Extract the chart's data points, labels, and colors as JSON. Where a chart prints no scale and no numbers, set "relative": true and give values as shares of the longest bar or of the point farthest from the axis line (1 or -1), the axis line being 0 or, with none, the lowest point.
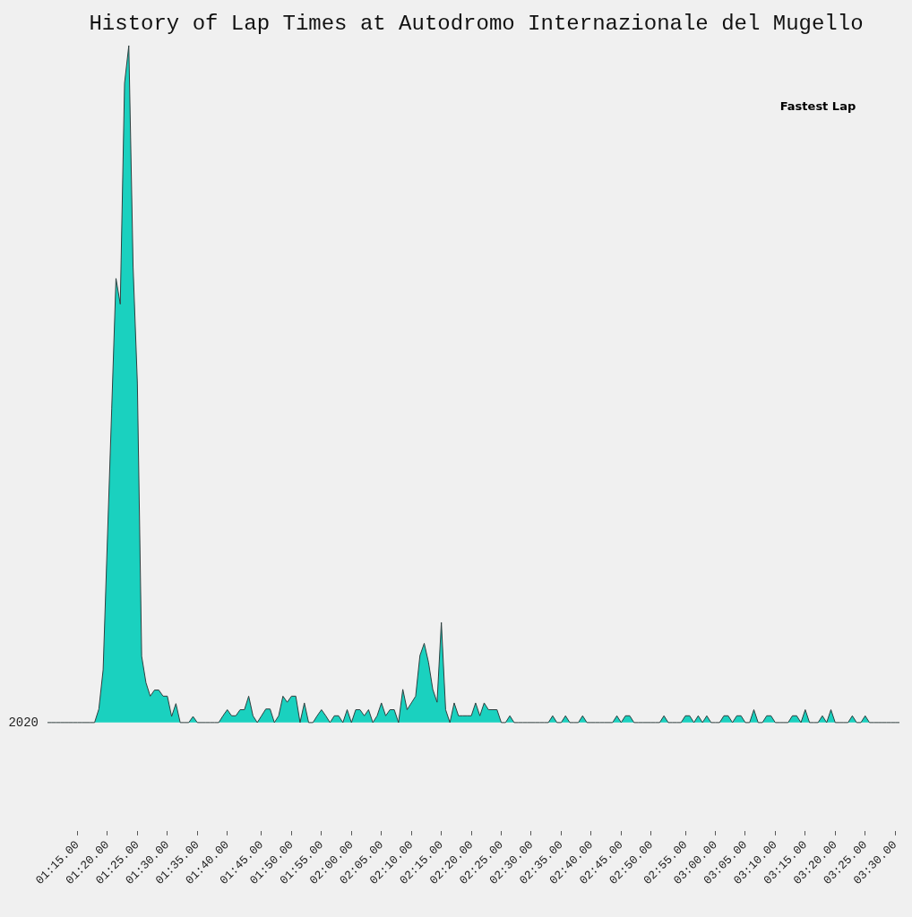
{
  "chart_data": {
    "type": "area",
    "title": "History of Lap Times at Autodromo Internazionale del Mugello",
    "relative": true,
    "legend_title": "Fastest Lap",
    "categories": [
      null,
      null,
      null,
      null,
      null,
      null,
      null,
      "01:15.00",
      null,
      null,
      null,
      null,
      null,
      null,
      "01:20.00",
      null,
      null,
      null,
      null,
      null,
      null,
      "01:25.00",
      null,
      null,
      null,
      null,
      null,
      null,
      "01:30.00",
      null,
      null,
      null,
      null,
      null,
      null,
      "01:35.00",
      null,
      null,
      null,
      null,
      null,
      null,
      "01:40.00",
      null,
      null,
      null,
      null,
      null,
      null,
      null,
      "01:45.00",
      null,
      null,
      null,
      null,
      null,
      null,
      "01:50.00",
      null,
      null,
      null,
      null,
      null,
      null,
      "01:55.00",
      null,
      null,
      null,
      null,
      null,
      null,
      "02:00.00",
      null,
      null,
      null,
      null,
      null,
      null,
      "02:05.00",
      null,
      null,
      null,
      null,
      null,
      null,
      "02:10.00",
      null,
      null,
      null,
      null,
      null,
      null,
      "02:15.00",
      null,
      null,
      null,
      null,
      null,
      null,
      "02:20.00",
      null,
      null,
      null,
      null,
      null,
      null,
      "02:25.00",
      null,
      null,
      null,
      null,
      null,
      null,
      "02:30.00",
      null,
      null,
      null,
      null,
      null,
      null,
      "02:35.00",
      null,
      null,
      null,
      null,
      null,
      null,
      "02:40.00",
      null,
      null,
      null,
      null,
      null,
      null,
      "02:45.00",
      null,
      null,
      null,
      null,
      null,
      null,
      "02:50.00",
      null,
      null,
      null,
      null,
      null,
      null,
      null,
      "02:55.00",
      null,
      null,
      null,
      null,
      null,
      null,
      "03:00.00",
      null,
      null,
      null,
      null,
      null,
      null,
      "03:05.00",
      null,
      null,
      null,
      null,
      null,
      null,
      "03:10.00",
      null,
      null,
      null,
      null,
      null,
      null,
      "03:15.00",
      null,
      null,
      null,
      null,
      null,
      null,
      "03:20.00",
      null,
      null,
      null,
      null,
      null,
      null,
      "03:25.00",
      null,
      null,
      null,
      null,
      null,
      null,
      "03:30.00",
      null
    ],
    "series": [
      {
        "name": "2020",
        "color": "#1ad1bf",
        "values": [
          0,
          0,
          0,
          0,
          0,
          0,
          0,
          0,
          0,
          0,
          0,
          0,
          0.02,
          0.078,
          0.271,
          0.463,
          0.656,
          0.618,
          0.944,
          1,
          0.673,
          0.501,
          0.098,
          0.059,
          0.039,
          0.048,
          0.048,
          0.039,
          0.039,
          0.009,
          0.028,
          0,
          0,
          0,
          0.009,
          0,
          0,
          0,
          0,
          0,
          0,
          0.01,
          0.019,
          0.01,
          0.01,
          0.019,
          0.019,
          0.039,
          0.01,
          0,
          0.01,
          0.02,
          0.02,
          0,
          0.01,
          0.039,
          0.03,
          0.039,
          0.039,
          0,
          0.029,
          0,
          0,
          0.01,
          0.019,
          0.01,
          0,
          0.01,
          0.01,
          0,
          0.019,
          0,
          0.019,
          0.019,
          0.01,
          0.019,
          0,
          0.01,
          0.029,
          0.01,
          0.019,
          0.019,
          0,
          0.049,
          0.019,
          0.029,
          0.039,
          0.099,
          0.117,
          0.089,
          0.049,
          0.03,
          0.148,
          0.019,
          0,
          0.029,
          0.01,
          0.01,
          0.01,
          0.01,
          0.029,
          0.01,
          0.029,
          0.019,
          0.019,
          0.019,
          0,
          0,
          0.01,
          0,
          0,
          0,
          0,
          0,
          0,
          0,
          0,
          0,
          0.01,
          0,
          0,
          0.01,
          0,
          0,
          0,
          0.01,
          0,
          0,
          0,
          0,
          0,
          0,
          0,
          0.01,
          0,
          0.01,
          0.01,
          0,
          0,
          0,
          0,
          0,
          0,
          0,
          0.01,
          0,
          0,
          0,
          0,
          0.01,
          0.01,
          0,
          0.01,
          0,
          0.01,
          0,
          0,
          0,
          0.01,
          0.01,
          0,
          0.01,
          0.01,
          0,
          0,
          0.019,
          0,
          0,
          0.01,
          0.01,
          0,
          0,
          0,
          0,
          0.01,
          0.01,
          0,
          0.019,
          0,
          0,
          0,
          0.01,
          0,
          0.019,
          0,
          0,
          0,
          0,
          0.01,
          0,
          0,
          0.01,
          0,
          0,
          0,
          0,
          0,
          0,
          0,
          0
        ]
      }
    ]
  }
}
